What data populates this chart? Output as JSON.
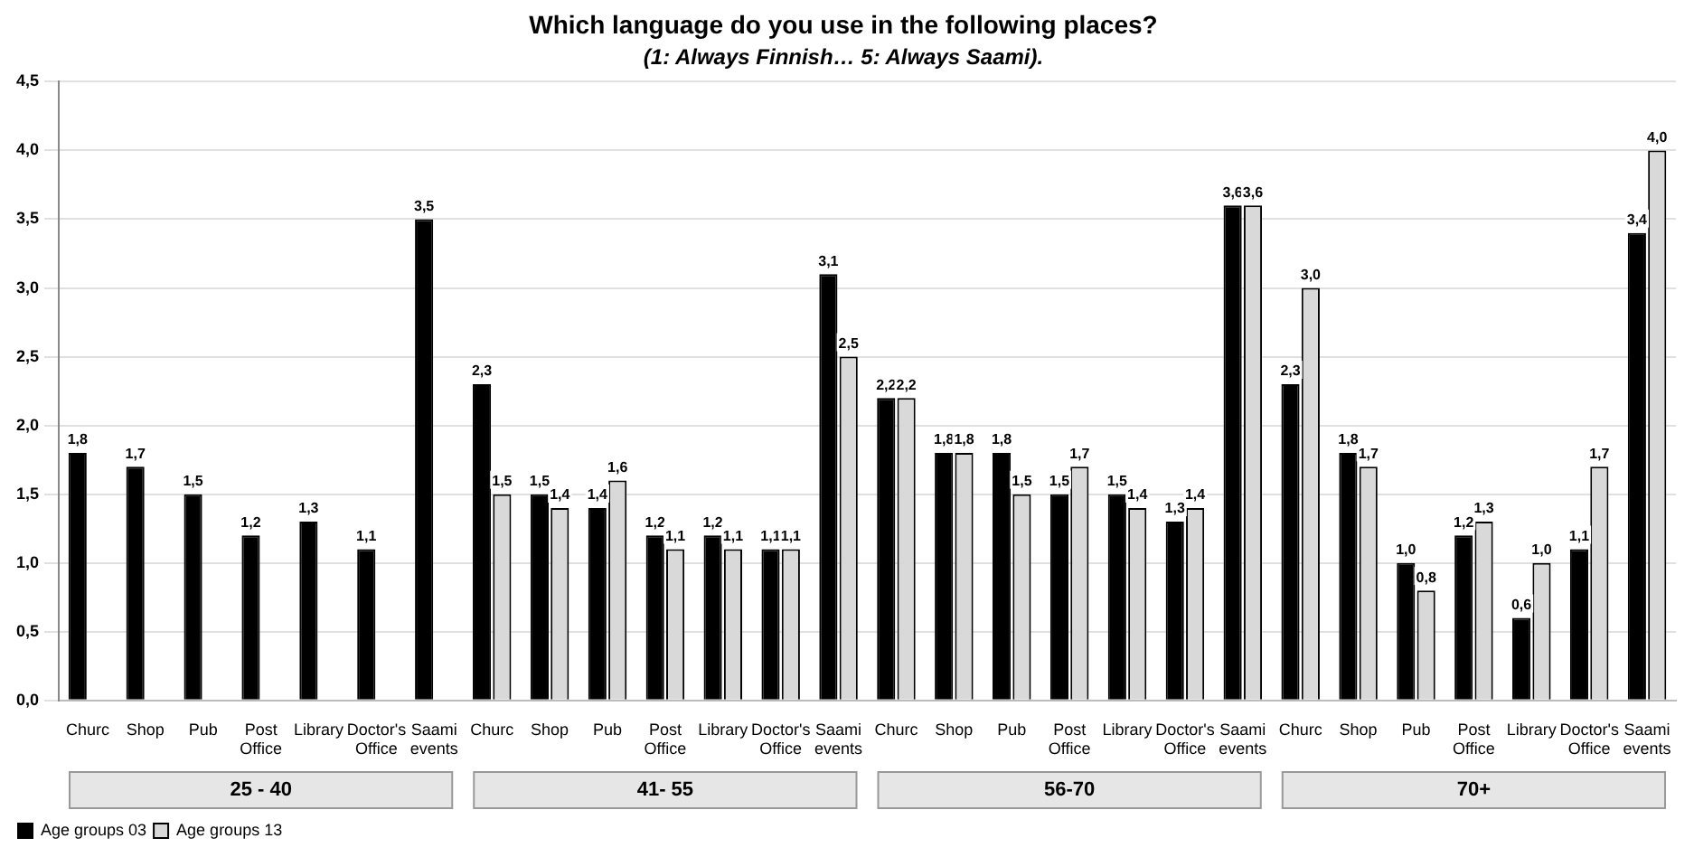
{
  "chart_data": {
    "type": "bar",
    "title": "Which language do you use in the following places?",
    "subtitle": "(1: Always Finnish… 5: Always Saami).",
    "categories": [
      "Churc",
      "Shop",
      "Pub",
      "Post Office",
      "Library",
      "Doctor's Office",
      "Saami events",
      "Churc",
      "Shop",
      "Pub",
      "Post Office",
      "Library",
      "Doctor's Office",
      "Saami events",
      "Churc",
      "Shop",
      "Pub",
      "Post Office",
      "Library",
      "Doctor's Office",
      "Saami events",
      "Churc",
      "Shop",
      "Pub",
      "Post Office",
      "Library",
      "Doctor's Office",
      "Saami events"
    ],
    "series": [
      {
        "name": "Age groups 03",
        "color": "#000000",
        "values": [
          1.8,
          1.7,
          1.5,
          1.2,
          1.3,
          1.1,
          3.5,
          2.3,
          1.5,
          1.4,
          1.2,
          1.2,
          1.1,
          3.1,
          2.2,
          1.8,
          1.8,
          1.5,
          1.5,
          1.3,
          3.6,
          2.3,
          1.8,
          1.0,
          1.2,
          0.6,
          1.1,
          3.4
        ],
        "value_labels": [
          "1,8",
          "1,7",
          "1,5",
          "1,2",
          "1,3",
          "1,1",
          "3,5",
          "2,3",
          "1,5",
          "1,4",
          "1,2",
          "1,2",
          "1,1",
          "3,1",
          "2,2",
          "1,8",
          "1,8",
          "1,5",
          "1,5",
          "1,3",
          "3,6",
          "2,3",
          "1,8",
          "1,0",
          "1,2",
          "0,6",
          "1,1",
          "3,4"
        ]
      },
      {
        "name": "Age groups 13",
        "color": "#d9d9d9",
        "values": [
          null,
          null,
          null,
          null,
          null,
          null,
          null,
          1.5,
          1.4,
          1.6,
          1.1,
          1.1,
          1.1,
          2.5,
          2.2,
          1.8,
          1.5,
          1.7,
          1.4,
          1.4,
          3.6,
          3.0,
          1.7,
          0.8,
          1.3,
          1.0,
          1.7,
          4.0
        ],
        "value_labels": [
          null,
          null,
          null,
          null,
          null,
          null,
          null,
          "1,5",
          "1,4",
          "1,6",
          "1,1",
          "1,1",
          "1,1",
          "2,5",
          "2,2",
          "1,8",
          "1,5",
          "1,7",
          "1,4",
          "1,4",
          "3,6",
          "3,0",
          "1,7",
          "0,8",
          "1,3",
          "1,0",
          "1,7",
          "4,0"
        ]
      }
    ],
    "ylim": [
      0,
      4.5
    ],
    "yticks": [
      {
        "value": 0,
        "label": "0,0"
      },
      {
        "value": 0.5,
        "label": "0,5"
      },
      {
        "value": 1,
        "label": "1,0"
      },
      {
        "value": 1.5,
        "label": "1,5"
      },
      {
        "value": 2,
        "label": "2,0"
      },
      {
        "value": 2.5,
        "label": "2,5"
      },
      {
        "value": 3,
        "label": "3,0"
      },
      {
        "value": 3.5,
        "label": "3,5"
      },
      {
        "value": 4,
        "label": "4,0"
      },
      {
        "value": 4.5,
        "label": "4,5"
      }
    ],
    "grid": "y",
    "legend": "bottom left",
    "annotations": [
      "25 - 40",
      "41- 55",
      "56-70",
      "70+"
    ]
  }
}
